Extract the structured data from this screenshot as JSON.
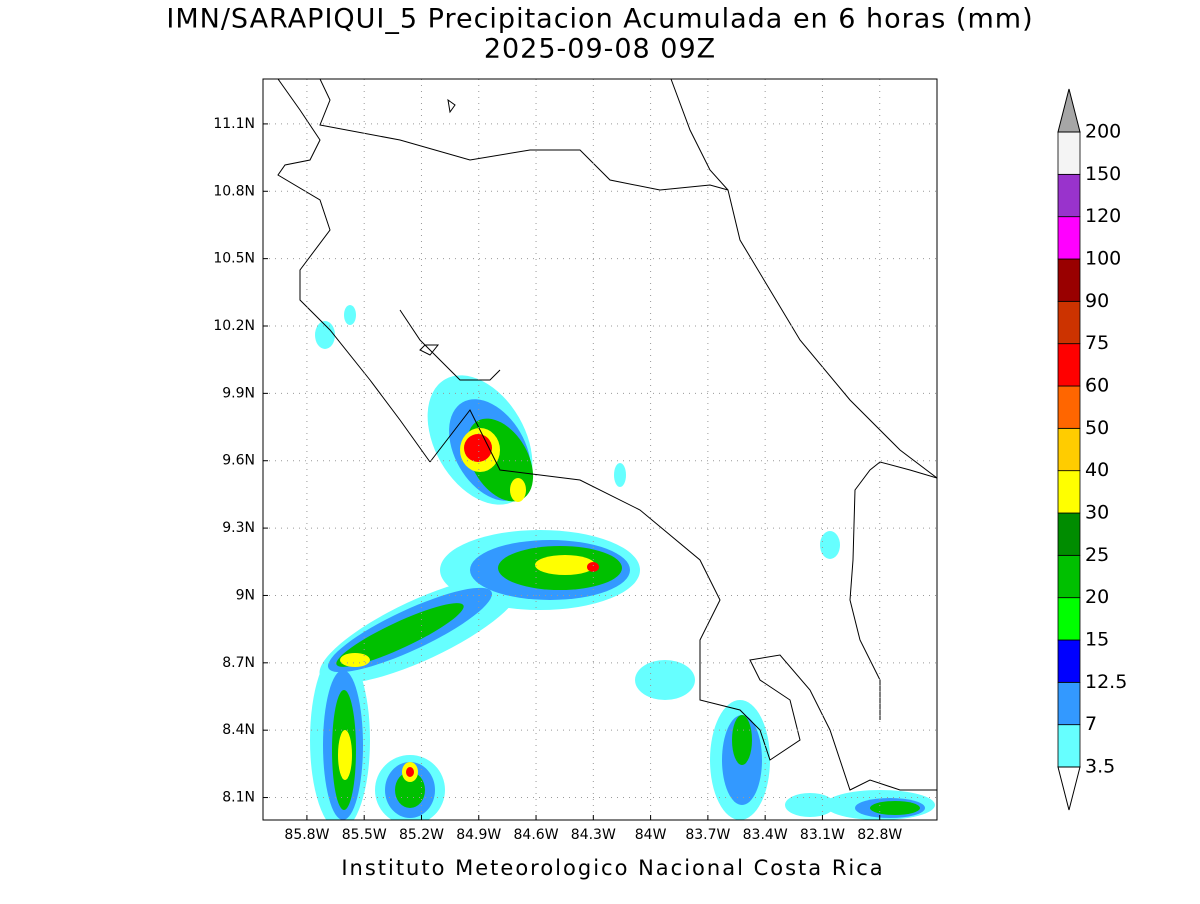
{
  "map": {
    "title": "IMN/SARAPIQUI_5 Precipitacion Acumulada en 6 horas (mm)",
    "subtitle": "2025-09-08 09Z",
    "footer": "Instituto Meteorologico Nacional Costa Rica",
    "xlim": [
      -86.03,
      -82.5
    ],
    "ylim": [
      8.0,
      11.3
    ],
    "grid": true,
    "xticks": [
      {
        "value": -85.8,
        "label": "85.8W"
      },
      {
        "value": -85.5,
        "label": "85.5W"
      },
      {
        "value": -85.2,
        "label": "85.2W"
      },
      {
        "value": -84.9,
        "label": "84.9W"
      },
      {
        "value": -84.6,
        "label": "84.6W"
      },
      {
        "value": -84.3,
        "label": "84.3W"
      },
      {
        "value": -84,
        "label": "84W"
      },
      {
        "value": -83.7,
        "label": "83.7W"
      },
      {
        "value": -83.4,
        "label": "83.4W"
      },
      {
        "value": -83.1,
        "label": "83.1W"
      },
      {
        "value": -82.8,
        "label": "82.8W"
      }
    ],
    "yticks": [
      {
        "value": 11.1,
        "label": "11.1N"
      },
      {
        "value": 10.8,
        "label": "10.8N"
      },
      {
        "value": 10.5,
        "label": "10.5N"
      },
      {
        "value": 10.2,
        "label": "10.2N"
      },
      {
        "value": 9.9,
        "label": "9.9N"
      },
      {
        "value": 9.6,
        "label": "9.6N"
      },
      {
        "value": 9.3,
        "label": "9.3N"
      },
      {
        "value": 9,
        "label": "9N"
      },
      {
        "value": 8.7,
        "label": "8.7N"
      },
      {
        "value": 8.4,
        "label": "8.4N"
      },
      {
        "value": 8.1,
        "label": "8.1N"
      }
    ],
    "colorbar": {
      "levels": [
        3.5,
        7,
        12.5,
        15,
        20,
        25,
        30,
        40,
        50,
        60,
        75,
        90,
        100,
        120,
        150,
        200
      ],
      "colors": [
        "#66ffff",
        "#3399ff",
        "#0000ff",
        "#00ff00",
        "#00c000",
        "#008c00",
        "#ffff00",
        "#ffcc00",
        "#ff6600",
        "#ff0000",
        "#cc3300",
        "#990000",
        "#ff00ff",
        "#9933cc",
        "#f4f4f4"
      ],
      "under_color": "#ffffff",
      "over_color": "#a6a6a6"
    }
  }
}
